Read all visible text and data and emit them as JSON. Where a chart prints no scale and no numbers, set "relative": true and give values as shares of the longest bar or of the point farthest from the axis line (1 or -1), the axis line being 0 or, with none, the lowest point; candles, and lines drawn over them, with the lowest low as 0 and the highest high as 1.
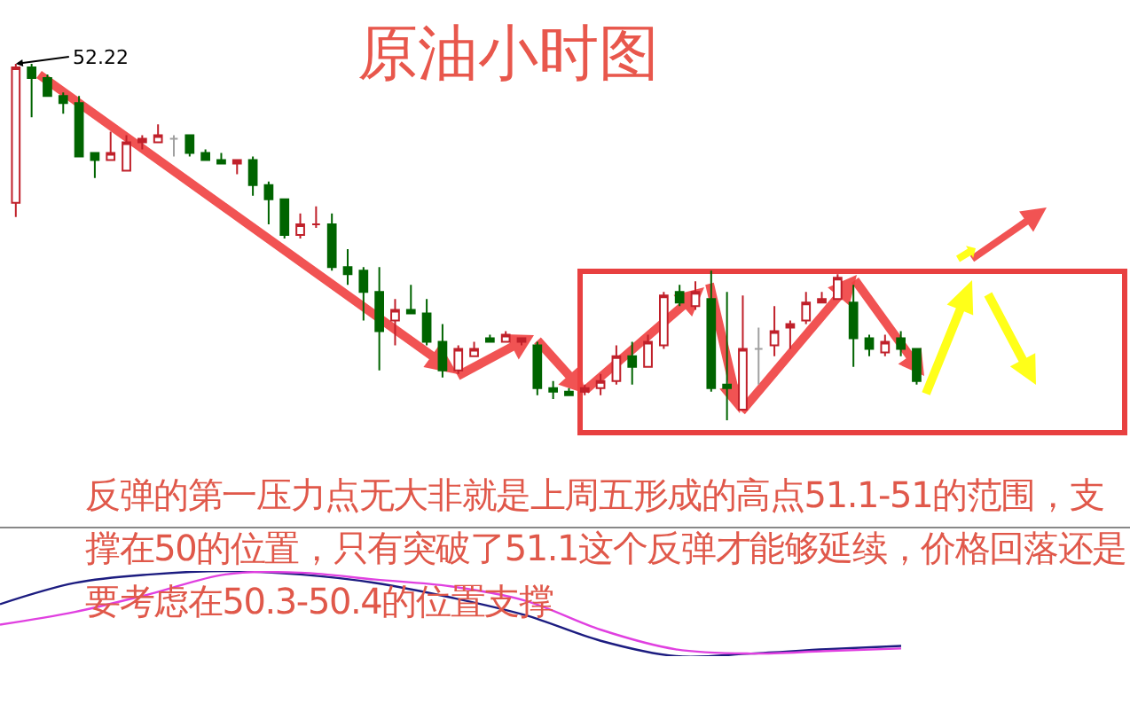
{
  "chart_data": [
    {
      "type": "candlestick",
      "title": "原油小时图",
      "relative": true,
      "categories": [
        null,
        null,
        null,
        null,
        null,
        null,
        null,
        null,
        null,
        null,
        null,
        null,
        null,
        null,
        null,
        null,
        null,
        null,
        null,
        null,
        null,
        null,
        null,
        null,
        null,
        null,
        null,
        null,
        null,
        null,
        null,
        null,
        null,
        null,
        null,
        null,
        null,
        null,
        null,
        null,
        null,
        null,
        null,
        null,
        null,
        null,
        null,
        null,
        null,
        null,
        null,
        null,
        null,
        null,
        null,
        null,
        null,
        null
      ],
      "ohlc": [
        [
          0.61,
          1.0,
          0.57,
          0.99
        ],
        [
          0.99,
          1.0,
          0.85,
          0.96
        ],
        [
          0.96,
          0.97,
          0.91,
          0.91
        ],
        [
          0.91,
          0.92,
          0.86,
          0.89
        ],
        [
          0.89,
          0.91,
          0.74,
          0.74
        ],
        [
          0.75,
          0.75,
          0.68,
          0.73
        ],
        [
          0.73,
          0.81,
          0.73,
          0.75
        ],
        [
          0.7,
          0.8,
          0.7,
          0.78
        ],
        [
          0.78,
          0.8,
          0.76,
          0.79
        ],
        [
          0.78,
          0.83,
          0.78,
          0.8
        ],
        [
          0.79,
          0.8,
          0.74,
          0.79
        ],
        [
          0.8,
          0.8,
          0.74,
          0.75
        ],
        [
          0.75,
          0.76,
          0.73,
          0.73
        ],
        [
          0.73,
          0.75,
          0.72,
          0.72
        ],
        [
          0.72,
          0.73,
          0.69,
          0.73
        ],
        [
          0.73,
          0.74,
          0.63,
          0.66
        ],
        [
          0.66,
          0.67,
          0.55,
          0.62
        ],
        [
          0.62,
          0.62,
          0.51,
          0.52
        ],
        [
          0.52,
          0.58,
          0.51,
          0.55
        ],
        [
          0.55,
          0.6,
          0.54,
          0.55
        ],
        [
          0.55,
          0.58,
          0.42,
          0.43
        ],
        [
          0.43,
          0.48,
          0.38,
          0.41
        ],
        [
          0.42,
          0.43,
          0.28,
          0.36
        ],
        [
          0.36,
          0.43,
          0.14,
          0.25
        ],
        [
          0.28,
          0.34,
          0.21,
          0.31
        ],
        [
          0.31,
          0.38,
          0.3,
          0.3
        ],
        [
          0.3,
          0.34,
          0.21,
          0.22
        ],
        [
          0.22,
          0.27,
          0.12,
          0.14
        ],
        [
          0.14,
          0.21,
          0.13,
          0.2
        ],
        [
          0.18,
          0.22,
          0.18,
          0.2
        ],
        [
          0.23,
          0.24,
          0.22,
          0.22
        ],
        [
          0.22,
          0.25,
          0.22,
          0.24
        ],
        [
          0.22,
          0.23,
          0.21,
          0.23
        ],
        [
          0.21,
          0.22,
          0.07,
          0.09
        ],
        [
          0.09,
          0.11,
          0.06,
          0.08
        ],
        [
          0.08,
          0.09,
          0.07,
          0.07
        ],
        [
          0.08,
          0.1,
          0.07,
          0.09
        ],
        [
          0.09,
          0.13,
          0.07,
          0.11
        ],
        [
          0.11,
          0.21,
          0.1,
          0.18
        ],
        [
          0.18,
          0.22,
          0.1,
          0.15
        ],
        [
          0.15,
          0.24,
          0.15,
          0.22
        ],
        [
          0.21,
          0.36,
          0.2,
          0.35
        ],
        [
          0.36,
          0.38,
          0.32,
          0.33
        ],
        [
          0.32,
          0.39,
          0.31,
          0.36
        ],
        [
          0.34,
          0.42,
          0.08,
          0.09
        ],
        [
          0.1,
          0.36,
          0.0,
          0.09
        ],
        [
          0.03,
          0.35,
          0.03,
          0.2
        ],
        [
          0.2,
          0.26,
          0.1,
          0.2
        ],
        [
          0.21,
          0.32,
          0.18,
          0.25
        ],
        [
          0.26,
          0.28,
          0.2,
          0.27
        ],
        [
          0.28,
          0.36,
          0.27,
          0.33
        ],
        [
          0.33,
          0.36,
          0.33,
          0.34
        ],
        [
          0.34,
          0.41,
          0.34,
          0.4
        ],
        [
          0.33,
          0.38,
          0.15,
          0.23
        ],
        [
          0.23,
          0.24,
          0.18,
          0.2
        ],
        [
          0.19,
          0.24,
          0.18,
          0.22
        ],
        [
          0.23,
          0.25,
          0.18,
          0.2
        ],
        [
          0.2,
          0.2,
          0.1,
          0.11
        ]
      ],
      "colors": [
        "#c0202a",
        "#006400",
        "#006400",
        "#006400",
        "#006400",
        "#006400",
        "#c0202a",
        "#c0202a",
        "#c0202a",
        "#c0202a",
        "#a0a0a0",
        "#006400",
        "#006400",
        "#006400",
        "#c0202a",
        "#006400",
        "#006400",
        "#006400",
        "#c0202a",
        "#c0202a",
        "#006400",
        "#006400",
        "#006400",
        "#006400",
        "#c0202a",
        "#006400",
        "#006400",
        "#006400",
        "#c0202a",
        "#c0202a",
        "#006400",
        "#c0202a",
        "#c0202a",
        "#006400",
        "#006400",
        "#006400",
        "#c0202a",
        "#c0202a",
        "#c0202a",
        "#006400",
        "#c0202a",
        "#c0202a",
        "#006400",
        "#c0202a",
        "#006400",
        "#006400",
        "#c0202a",
        "#a0a0a0",
        "#c0202a",
        "#c0202a",
        "#c0202a",
        "#c0202a",
        "#c0202a",
        "#006400",
        "#006400",
        "#c0202a",
        "#006400",
        "#006400"
      ],
      "annotations": [
        "52.22",
        "反弹的第一压力点无大非就是上周五形成的高点51.1-51的范围，支撑在50的位置，只有突破了51.1这个反弹才能够延续，价格回落还是要考虑在50.3-50.4的位置支撑"
      ]
    },
    {
      "type": "line",
      "relative": true,
      "categories": [
        null,
        null,
        null,
        null,
        null,
        null,
        null,
        null,
        null,
        null,
        null,
        null,
        null
      ],
      "series": [
        {
          "color": "#1c1c80",
          "values": [
            0.61,
            0.86,
            0.96,
            1.0,
            0.96,
            0.86,
            0.69,
            0.48,
            0.18,
            0.0,
            0.03,
            0.08,
            0.12
          ]
        },
        {
          "color": "#e040e0",
          "values": [
            0.37,
            0.52,
            0.73,
            0.96,
            0.98,
            0.9,
            0.82,
            0.65,
            0.31,
            0.08,
            0.03,
            0.06,
            0.09
          ]
        }
      ]
    }
  ]
}
